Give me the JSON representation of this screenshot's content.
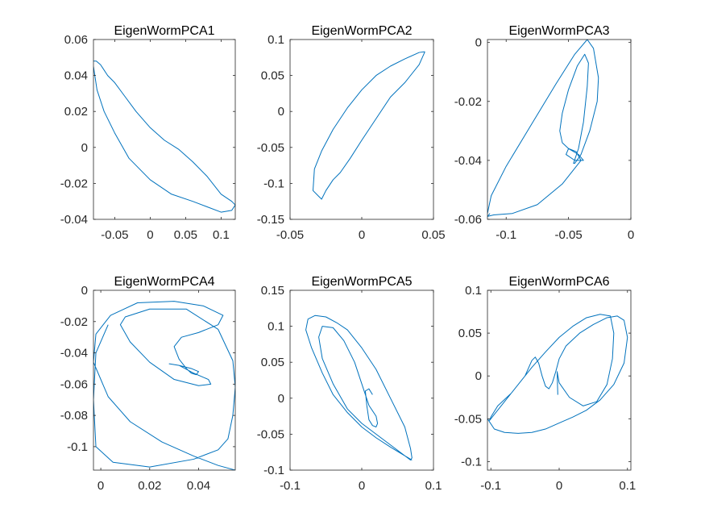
{
  "figure": {
    "background": "#ffffff",
    "line_color": "#0072BD",
    "axis_color": "#262626"
  },
  "chart_data": [
    {
      "type": "line",
      "title": "EigenWormPCA1",
      "xlim": [
        -0.08,
        0.12
      ],
      "ylim": [
        -0.04,
        0.06
      ],
      "xticks": [
        -0.05,
        0,
        0.05,
        0.1
      ],
      "xtick_labels": [
        "-0.05",
        "0",
        "0.05",
        "0.1"
      ],
      "yticks": [
        -0.04,
        -0.02,
        0,
        0.02,
        0.04,
        0.06
      ],
      "ytick_labels": [
        "-0.04",
        "-0.02",
        "0",
        "0.02",
        "0.04",
        "0.06"
      ],
      "series": [
        {
          "x": [
            -0.08,
            -0.076,
            -0.07,
            -0.06,
            -0.05,
            -0.035,
            -0.02,
            0,
            0.02,
            0.04,
            0.06,
            0.08,
            0.1,
            0.115,
            0.12,
            0.115,
            0.1,
            0.08,
            0.06,
            0.03,
            0,
            -0.03,
            -0.05,
            -0.065,
            -0.075,
            -0.08
          ],
          "y": [
            0.048,
            0.048,
            0.046,
            0.04,
            0.036,
            0.028,
            0.02,
            0.011,
            0.004,
            -0.001,
            -0.008,
            -0.016,
            -0.026,
            -0.03,
            -0.032,
            -0.035,
            -0.036,
            -0.033,
            -0.03,
            -0.026,
            -0.018,
            -0.006,
            0.008,
            0.02,
            0.032,
            0.045
          ]
        }
      ]
    },
    {
      "type": "line",
      "title": "EigenWormPCA2",
      "xlim": [
        -0.05,
        0.05
      ],
      "ylim": [
        -0.15,
        0.1
      ],
      "xticks": [
        -0.05,
        0,
        0.05
      ],
      "xtick_labels": [
        "-0.05",
        "0",
        "0.05"
      ],
      "yticks": [
        -0.15,
        -0.1,
        -0.05,
        0,
        0.05,
        0.1
      ],
      "ytick_labels": [
        "-0.15",
        "-0.1",
        "-0.05",
        "0",
        "0.05",
        "0.1"
      ],
      "series": [
        {
          "x": [
            0.044,
            0.04,
            0.03,
            0.02,
            0.01,
            0,
            -0.01,
            -0.02,
            -0.028,
            -0.033,
            -0.034,
            -0.03,
            -0.028,
            -0.025,
            -0.02,
            -0.015,
            -0.008,
            0,
            0.01,
            0.02,
            0.03,
            0.04,
            0.044
          ],
          "y": [
            0.083,
            0.082,
            0.073,
            0.063,
            0.05,
            0.03,
            0.005,
            -0.025,
            -0.055,
            -0.08,
            -0.11,
            -0.118,
            -0.122,
            -0.11,
            -0.095,
            -0.085,
            -0.065,
            -0.04,
            -0.01,
            0.02,
            0.04,
            0.065,
            0.083
          ]
        }
      ]
    },
    {
      "type": "line",
      "title": "EigenWormPCA3",
      "xlim": [
        -0.115,
        0
      ],
      "ylim": [
        -0.06,
        0.001
      ],
      "xticks": [
        -0.1,
        -0.05,
        0
      ],
      "xtick_labels": [
        "-0.1",
        "-0.05",
        "0"
      ],
      "yticks": [
        -0.06,
        -0.04,
        -0.02,
        0
      ],
      "ytick_labels": [
        "-0.06",
        "-0.04",
        "-0.02",
        "0"
      ],
      "series": [
        {
          "x": [
            -0.115,
            -0.112,
            -0.1,
            -0.08,
            -0.06,
            -0.045,
            -0.035,
            -0.03,
            -0.026,
            -0.027,
            -0.033,
            -0.04,
            -0.045,
            -0.046,
            -0.042,
            -0.038,
            -0.035,
            -0.034,
            -0.037,
            -0.043,
            -0.05,
            -0.055,
            -0.057,
            -0.055,
            -0.05,
            -0.042,
            -0.038,
            -0.045,
            -0.052,
            -0.05,
            -0.044,
            -0.04,
            -0.055,
            -0.075,
            -0.095,
            -0.11,
            -0.115,
            -0.113
          ],
          "y": [
            -0.058,
            -0.052,
            -0.042,
            -0.028,
            -0.014,
            -0.004,
            0.001,
            -0.002,
            -0.012,
            -0.02,
            -0.03,
            -0.038,
            -0.041,
            -0.041,
            -0.036,
            -0.027,
            -0.015,
            -0.007,
            -0.004,
            -0.008,
            -0.016,
            -0.024,
            -0.03,
            -0.034,
            -0.036,
            -0.038,
            -0.04,
            -0.04,
            -0.038,
            -0.036,
            -0.037,
            -0.04,
            -0.048,
            -0.055,
            -0.058,
            -0.0585,
            -0.059,
            -0.058
          ]
        }
      ]
    },
    {
      "type": "line",
      "title": "EigenWormPCA4",
      "xlim": [
        -0.003,
        0.055
      ],
      "ylim": [
        -0.115,
        0
      ],
      "xticks": [
        0,
        0.02,
        0.04
      ],
      "xtick_labels": [
        "0",
        "0.02",
        "0.04"
      ],
      "yticks": [
        -0.1,
        -0.08,
        -0.06,
        -0.04,
        -0.02,
        0
      ],
      "ytick_labels": [
        "-0.1",
        "-0.08",
        "-0.06",
        "-0.04",
        "-0.02",
        "0"
      ],
      "series": [
        {
          "x": [
            0.055,
            0.048,
            0.038,
            0.025,
            0.012,
            0.003,
            -0.003,
            -0.002,
            0.004,
            0.015,
            0.03,
            0.042,
            0.05,
            0.048,
            0.04,
            0.033,
            0.03,
            0.032,
            0.035,
            0.037,
            0.039,
            0.04,
            0.037,
            0.032,
            0.028,
            0.032,
            0.038,
            0.044,
            0.045,
            0.04,
            0.03,
            0.02,
            0.012,
            0.008,
            0.01,
            0.02,
            0.035,
            0.048,
            0.054,
            0.055,
            0.054,
            0.052,
            0.048,
            0.038,
            0.02,
            0.005,
            -0.002,
            -0.003,
            -0.002,
            0.003
          ],
          "y": [
            -0.115,
            -0.112,
            -0.106,
            -0.097,
            -0.084,
            -0.068,
            -0.046,
            -0.028,
            -0.016,
            -0.008,
            -0.007,
            -0.01,
            -0.016,
            -0.022,
            -0.027,
            -0.03,
            -0.036,
            -0.044,
            -0.05,
            -0.053,
            -0.054,
            -0.052,
            -0.05,
            -0.048,
            -0.047,
            -0.048,
            -0.053,
            -0.057,
            -0.06,
            -0.061,
            -0.057,
            -0.046,
            -0.033,
            -0.022,
            -0.017,
            -0.012,
            -0.012,
            -0.025,
            -0.045,
            -0.062,
            -0.08,
            -0.095,
            -0.102,
            -0.108,
            -0.113,
            -0.11,
            -0.1,
            -0.07,
            -0.04,
            -0.022
          ]
        }
      ]
    },
    {
      "type": "line",
      "title": "EigenWormPCA5",
      "xlim": [
        -0.1,
        0.1
      ],
      "ylim": [
        -0.1,
        0.15
      ],
      "xticks": [
        -0.1,
        0,
        0.1
      ],
      "xtick_labels": [
        "-0.1",
        "0",
        "0.1"
      ],
      "yticks": [
        -0.1,
        -0.05,
        0,
        0.05,
        0.1,
        0.15
      ],
      "ytick_labels": [
        "-0.1",
        "-0.05",
        "0",
        "0.05",
        "0.1",
        "0.15"
      ],
      "series": [
        {
          "x": [
            0.07,
            0.06,
            0.04,
            0.02,
            0,
            -0.02,
            -0.04,
            -0.055,
            -0.07,
            -0.078,
            -0.075,
            -0.065,
            -0.05,
            -0.035,
            -0.02,
            0,
            0.02,
            0.04,
            0.06,
            0.068,
            0.07,
            0.068,
            0.06,
            0.04,
            0.02,
            0,
            -0.02,
            -0.04,
            -0.055,
            -0.06,
            -0.055,
            -0.04,
            -0.025,
            -0.01,
            0,
            0.01,
            0.02,
            0.022,
            0.02,
            0.015,
            0.01,
            0.007,
            0.005,
            0.01,
            0.015
          ],
          "y": [
            -0.086,
            -0.08,
            -0.068,
            -0.055,
            -0.04,
            -0.02,
            0.005,
            0.035,
            0.07,
            0.095,
            0.11,
            0.115,
            0.113,
            0.105,
            0.095,
            0.07,
            0.04,
            0.0,
            -0.04,
            -0.07,
            -0.083,
            -0.086,
            -0.08,
            -0.065,
            -0.05,
            -0.035,
            -0.015,
            0.02,
            0.055,
            0.085,
            0.1,
            0.098,
            0.08,
            0.05,
            0.02,
            -0.01,
            -0.025,
            -0.035,
            -0.04,
            -0.038,
            -0.03,
            -0.01,
            0.01,
            0.013,
            0.005
          ]
        }
      ]
    },
    {
      "type": "line",
      "title": "EigenWormPCA6",
      "xlim": [
        -0.105,
        0.105
      ],
      "ylim": [
        -0.11,
        0.1
      ],
      "xticks": [
        -0.1,
        0,
        0.1
      ],
      "xtick_labels": [
        "-0.1",
        "0",
        "0.1"
      ],
      "yticks": [
        -0.1,
        -0.05,
        0,
        0.05,
        0.1
      ],
      "ytick_labels": [
        "-0.1",
        "-0.05",
        "0",
        "0.05",
        "0.1"
      ],
      "series": [
        {
          "x": [
            -0.105,
            -0.095,
            -0.08,
            -0.06,
            -0.04,
            -0.02,
            0,
            0.02,
            0.04,
            0.06,
            0.08,
            0.095,
            0.1,
            0.095,
            0.085,
            0.07,
            0.05,
            0.03,
            0.01,
            0,
            -0.005,
            -0.01,
            -0.015,
            -0.02,
            -0.025,
            -0.03,
            -0.035,
            -0.04,
            -0.05,
            -0.07,
            -0.09,
            -0.1,
            -0.102,
            -0.1,
            -0.095,
            -0.08,
            -0.06,
            -0.04,
            -0.02,
            0,
            0.02,
            0.04,
            0.06,
            0.075,
            0.08,
            0.078,
            0.07,
            0.055,
            0.035,
            0.015,
            0,
            -0.003,
            -0.002
          ],
          "y": [
            -0.05,
            -0.062,
            -0.066,
            -0.067,
            -0.066,
            -0.062,
            -0.055,
            -0.048,
            -0.04,
            -0.028,
            -0.01,
            0.015,
            0.045,
            0.065,
            0.07,
            0.068,
            0.06,
            0.05,
            0.035,
            0.02,
            0.005,
            -0.008,
            -0.015,
            -0.012,
            0.0,
            0.015,
            0.022,
            0.018,
            0.0,
            -0.02,
            -0.035,
            -0.048,
            -0.052,
            -0.05,
            -0.045,
            -0.03,
            -0.01,
            0.01,
            0.028,
            0.045,
            0.058,
            0.068,
            0.072,
            0.07,
            0.05,
            0.02,
            -0.01,
            -0.03,
            -0.035,
            -0.025,
            -0.008,
            0.005,
            -0.022
          ]
        }
      ]
    }
  ]
}
